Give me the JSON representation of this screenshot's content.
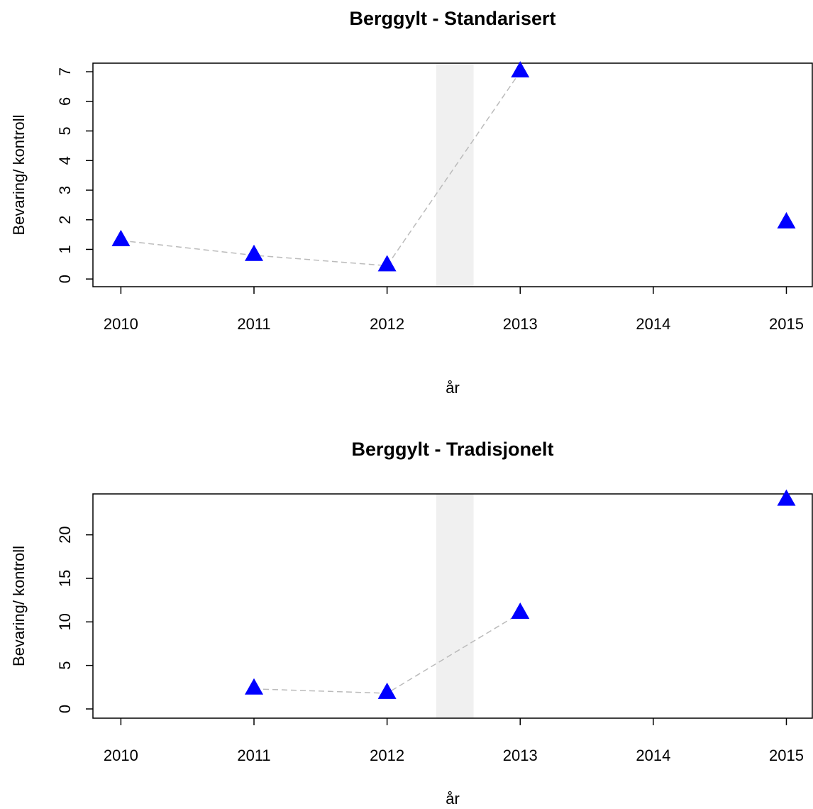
{
  "chart_data": [
    {
      "type": "line",
      "title": "Berggylt - Standarisert",
      "x_label": "år",
      "y_label": "Bevaring/ kontroll",
      "x": [
        2010,
        2011,
        2012,
        2013,
        2014,
        2015
      ],
      "series": [
        {
          "name": "Bevaring/ kontroll",
          "color": "#0000ff",
          "line_color": "#bbbbbb",
          "values": [
            1.3,
            0.8,
            0.45,
            7.0,
            null,
            1.9
          ]
        }
      ],
      "xlim": [
        2009.79,
        2015.2
      ],
      "xticks": [
        2010,
        2011,
        2012,
        2013,
        2014,
        2015
      ],
      "ylim": [
        -0.26,
        7.29
      ],
      "yticks": [
        0,
        1,
        2,
        3,
        4,
        5,
        6,
        7
      ],
      "highlight_band": [
        2012.37,
        2012.65
      ],
      "highlight_color": "#f0f0f0"
    },
    {
      "type": "line",
      "title": "Berggylt - Tradisjonelt",
      "x_label": "år",
      "y_label": "Bevaring/ kontroll",
      "x": [
        2010,
        2011,
        2012,
        2013,
        2014,
        2015
      ],
      "series": [
        {
          "name": "Bevaring/ kontroll",
          "color": "#0000ff",
          "line_color": "#bbbbbb",
          "values": [
            null,
            2.3,
            1.8,
            11,
            null,
            24
          ]
        }
      ],
      "xlim": [
        2009.79,
        2015.2
      ],
      "xticks": [
        2010,
        2011,
        2012,
        2013,
        2014,
        2015
      ],
      "ylim": [
        -1.06,
        24.7
      ],
      "yticks": [
        0,
        5,
        10,
        15,
        20
      ],
      "highlight_band": [
        2012.37,
        2012.65
      ],
      "highlight_color": "#f0f0f0"
    }
  ]
}
